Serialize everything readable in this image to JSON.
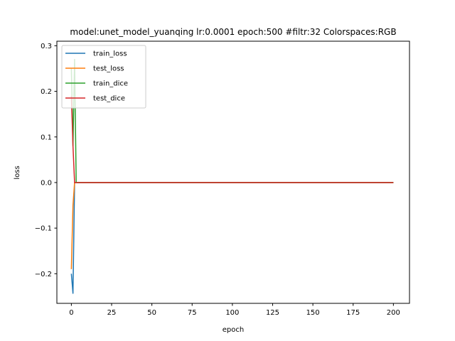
{
  "chart_data": {
    "type": "line",
    "title": "model:unet_model_yuanqing lr:0.0001 epoch:500 #filtr:32 Colorspaces:RGB",
    "xlabel": "epoch",
    "ylabel": "loss",
    "xlim": [
      -9,
      210
    ],
    "ylim": [
      -0.265,
      0.31
    ],
    "xticks": [
      0,
      25,
      50,
      75,
      100,
      125,
      150,
      175,
      200
    ],
    "xtick_labels": [
      "0",
      "25",
      "50",
      "75",
      "100",
      "125",
      "150",
      "175",
      "200"
    ],
    "yticks": [
      -0.2,
      -0.1,
      0.0,
      0.1,
      0.2,
      0.3
    ],
    "ytick_labels": [
      "−0.2",
      "−0.1",
      "0.0",
      "0.1",
      "0.2",
      "0.3"
    ],
    "legend_position": "top-left",
    "grid": false,
    "series": [
      {
        "name": "train_loss",
        "color": "#1f77b4",
        "x": [
          0,
          1,
          2,
          3,
          200
        ],
        "y": [
          -0.2,
          -0.243,
          0.0,
          0.0,
          0.0
        ]
      },
      {
        "name": "test_loss",
        "color": "#ff7f0e",
        "x": [
          0,
          1,
          2,
          3,
          200
        ],
        "y": [
          -0.19,
          -0.05,
          0.0,
          0.0,
          0.0
        ]
      },
      {
        "name": "train_dice",
        "color": "#2ca02c",
        "x": [
          0,
          1,
          2,
          3,
          200
        ],
        "y": [
          0.25,
          0.08,
          0.27,
          0.0,
          0.0
        ]
      },
      {
        "name": "test_dice",
        "color": "#d62728",
        "x": [
          0,
          1,
          2,
          3,
          200
        ],
        "y": [
          0.19,
          0.08,
          0.0,
          0.0,
          0.0
        ]
      }
    ]
  }
}
